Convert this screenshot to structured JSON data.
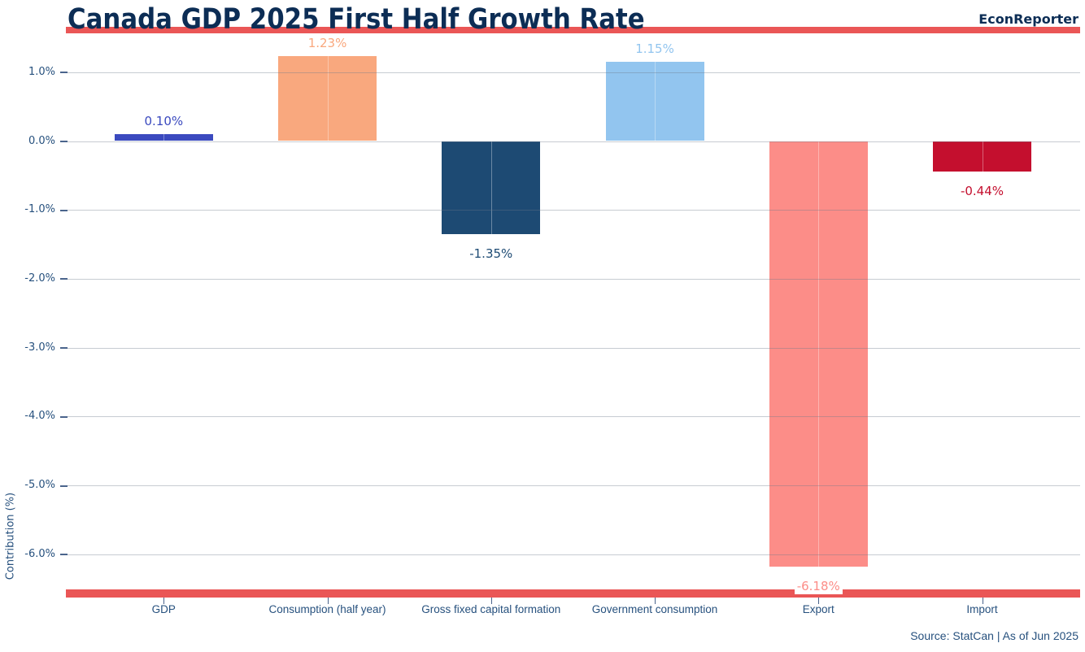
{
  "header": {
    "title": "Canada GDP 2025 First Half Growth Rate",
    "brand": "EconReporter"
  },
  "footer": {
    "source": "Source: StatCan | As of Jun 2025"
  },
  "colors": {
    "accent_red": "#EA5656",
    "title_navy": "#0C2D55",
    "axis_text": "#27517E",
    "gridline": "#C8CDD4"
  },
  "chart_data": {
    "type": "bar",
    "title": "Canada GDP 2025 First Half Growth Rate",
    "categories": [
      "GDP",
      "Consumption (half year)",
      "Gross fixed capital formation",
      "Government consumption",
      "Export",
      "Import"
    ],
    "values": [
      0.1,
      1.23,
      -1.35,
      1.15,
      -6.18,
      -0.44
    ],
    "value_labels": [
      "0.10%",
      "1.23%",
      "-1.35%",
      "1.15%",
      "-6.18%",
      "-0.44%"
    ],
    "bar_colors": [
      "#3B4ABF",
      "#F9A87E",
      "#1D4A73",
      "#92C5EF",
      "#FC8D88",
      "#C40F2E"
    ],
    "xlabel": "",
    "ylabel": "Contribution (%)",
    "ylim": [
      -6.7,
      1.55
    ],
    "ytick_values": [
      1.0,
      0.0,
      -1.0,
      -2.0,
      -3.0,
      -4.0,
      -5.0,
      -6.0
    ],
    "ytick_labels": [
      "1.0%",
      "0.0%",
      "-1.0%",
      "-2.0%",
      "-3.0%",
      "-4.0%",
      "-5.0%",
      "-6.0%"
    ],
    "grid": true,
    "legend": false
  }
}
